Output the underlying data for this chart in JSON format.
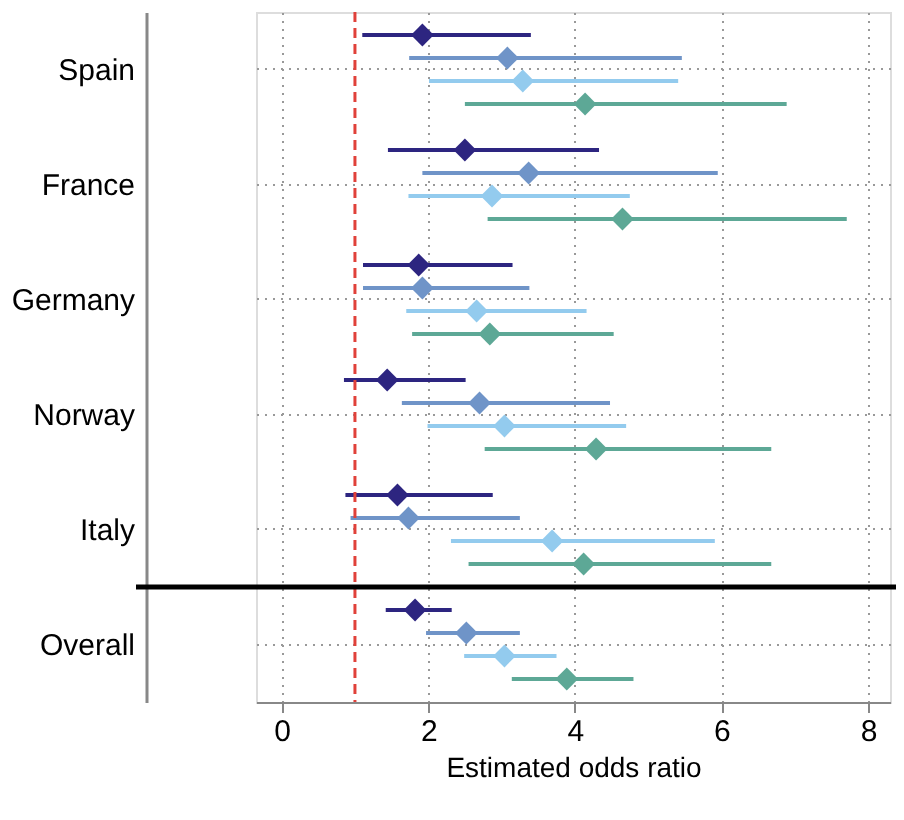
{
  "chart_data": {
    "type": "scatter",
    "orientation": "horizontal",
    "xlabel": "Estimated odds ratio",
    "categories": [
      "Spain",
      "France",
      "Germany",
      "Norway",
      "Italy",
      "Overall"
    ],
    "series": [
      {
        "color": "#2d2580",
        "values": [
          1.92,
          2.5,
          1.87,
          1.44,
          1.58,
          1.82
        ],
        "errors": [
          [
            1.1,
            3.4
          ],
          [
            1.45,
            4.33
          ],
          [
            1.11,
            3.15
          ],
          [
            0.85,
            2.51
          ],
          [
            0.87,
            2.88
          ],
          [
            1.42,
            2.32
          ]
        ]
      },
      {
        "color": "#6f94c8",
        "values": [
          3.08,
          3.37,
          1.92,
          2.7,
          1.73,
          2.52
        ],
        "errors": [
          [
            1.74,
            5.46
          ],
          [
            1.92,
            5.95
          ],
          [
            1.11,
            3.38
          ],
          [
            1.64,
            4.48
          ],
          [
            0.94,
            3.25
          ],
          [
            1.97,
            3.25
          ]
        ]
      },
      {
        "color": "#93cbee",
        "values": [
          3.29,
          2.87,
          2.66,
          3.04,
          3.69,
          3.04
        ],
        "errors": [
          [
            2.01,
            5.41
          ],
          [
            1.73,
            4.75
          ],
          [
            1.7,
            4.16
          ],
          [
            1.99,
            4.7
          ],
          [
            2.31,
            5.91
          ],
          [
            2.49,
            3.75
          ]
        ]
      },
      {
        "color": "#5da896",
        "values": [
          4.14,
          4.65,
          2.84,
          4.29,
          4.12,
          3.89
        ],
        "errors": [
          [
            2.5,
            6.89
          ],
          [
            2.81,
            7.71
          ],
          [
            1.78,
            4.53
          ],
          [
            2.77,
            6.68
          ],
          [
            2.55,
            6.68
          ],
          [
            3.14,
            4.8
          ]
        ]
      }
    ],
    "xlim": [
      -0.35,
      8.3
    ],
    "xticks": [
      0,
      2,
      4,
      6,
      8
    ],
    "ref_lines": [
      {
        "axis": "x",
        "value": 1,
        "color": "#e0413a",
        "line_style": "dashed"
      },
      {
        "axis": "y",
        "value": "Overall",
        "color": "#000000",
        "line_style": "solid"
      }
    ],
    "grid": true,
    "marker": "diamond"
  }
}
